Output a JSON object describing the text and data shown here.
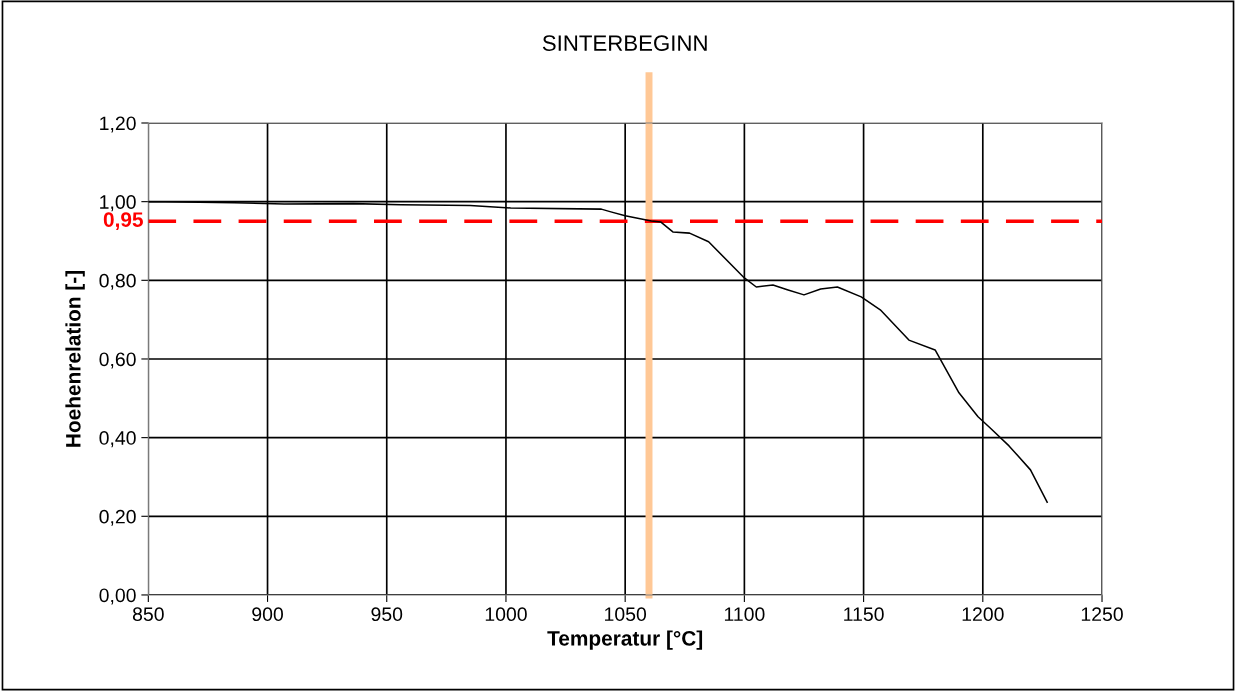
{
  "chart_data": {
    "type": "line",
    "title": "SINTERBEGINN",
    "xlabel": "Temperatur [°C]",
    "ylabel": "Hoehenrelation [-]",
    "xlim": [
      850,
      1250
    ],
    "xticks": [
      850,
      900,
      950,
      1000,
      1050,
      1100,
      1150,
      1200,
      1250
    ],
    "ylim": [
      0,
      1.2
    ],
    "yticks": [
      {
        "value": 0,
        "label": "0,00"
      },
      {
        "value": 0.2,
        "label": "0,20"
      },
      {
        "value": 0.4,
        "label": "0,40"
      },
      {
        "value": 0.6,
        "label": "0,60"
      },
      {
        "value": 0.8,
        "label": "0,80"
      },
      {
        "value": 1.0,
        "label": "1,00"
      },
      {
        "value": 1.2,
        "label": "1,20"
      }
    ],
    "grid": true,
    "legend": false,
    "marker": "none",
    "line_style": "solid",
    "series": [
      {
        "color": "#000000",
        "x": [
          850,
          857,
          886,
          907,
          936,
          956,
          985,
          1002,
          1040,
          1044,
          1050,
          1061,
          1065,
          1070,
          1077,
          1085,
          1100,
          1105,
          1112,
          1118,
          1125,
          1132,
          1139,
          1149,
          1157,
          1169,
          1180,
          1190,
          1198,
          1203,
          1211,
          1220,
          1227
        ],
        "values": [
          1.0,
          1.0,
          0.997,
          0.994,
          0.995,
          0.992,
          0.99,
          0.984,
          0.981,
          0.974,
          0.964,
          0.951,
          0.948,
          0.923,
          0.92,
          0.898,
          0.806,
          0.783,
          0.788,
          0.776,
          0.763,
          0.778,
          0.783,
          0.758,
          0.725,
          0.648,
          0.623,
          0.514,
          0.453,
          0.425,
          0.379,
          0.318,
          0.236
        ]
      }
    ],
    "ref_lines": [
      {
        "axis": "y",
        "value": 0.95,
        "label": "0,95",
        "color": "#ff0000",
        "line_style": "dashed"
      },
      {
        "axis": "x",
        "value": 1060,
        "color": "#ffc896",
        "line_style": "solid"
      }
    ]
  }
}
